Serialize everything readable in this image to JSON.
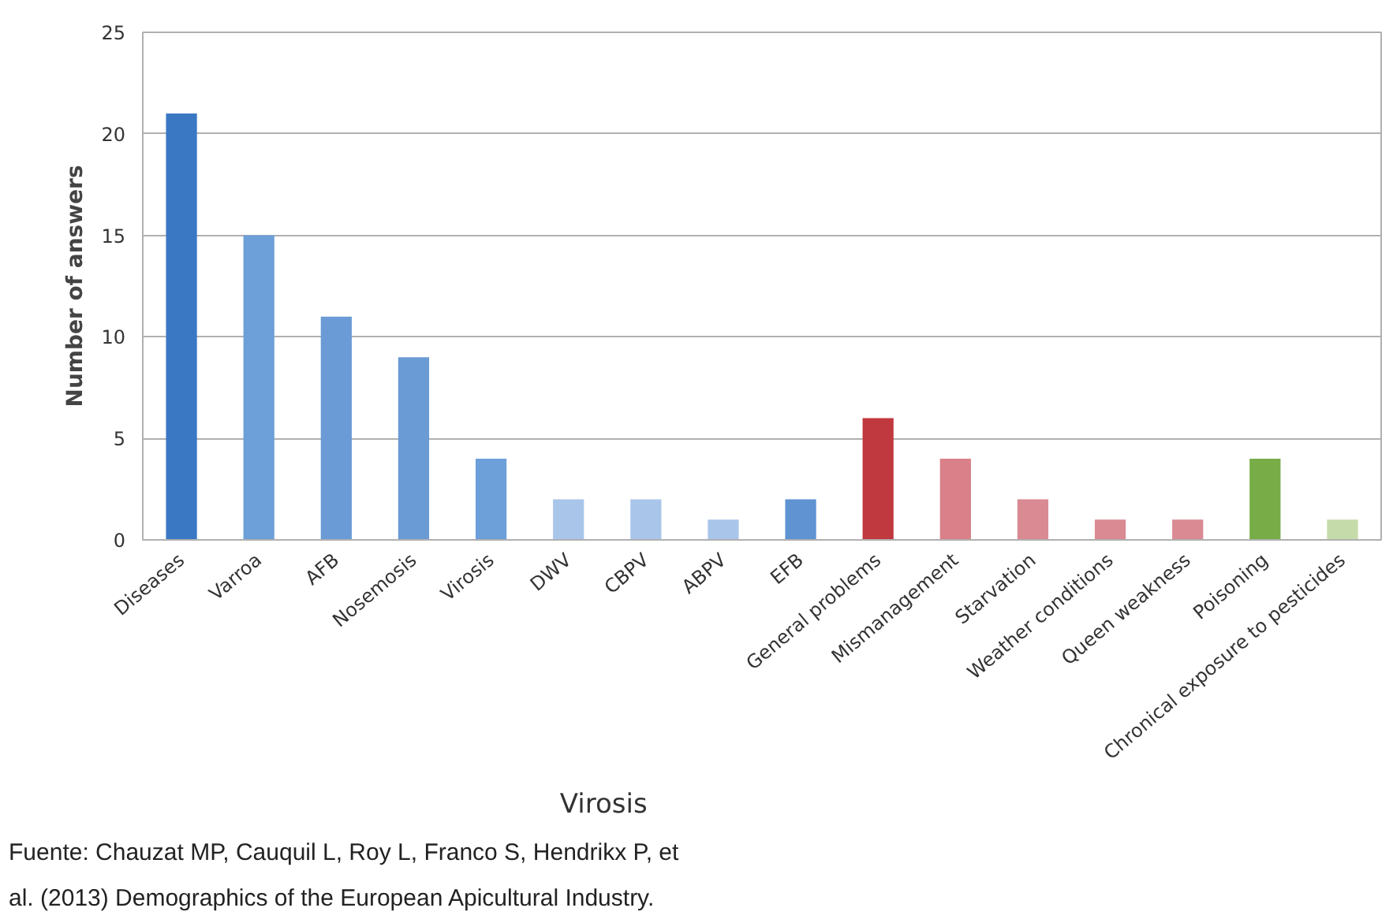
{
  "chart_data": {
    "type": "bar",
    "ylabel": "Number of answers",
    "categories": [
      "Diseases",
      "Varroa",
      "AFB",
      "Nosemosis",
      "Virosis",
      "DWV",
      "CBPV",
      "ABPV",
      "EFB",
      "General problems",
      "Mismanagement",
      "Starvation",
      "Weather conditions",
      "Queen weakness",
      "Poisoning",
      "Chronical exposure to pesticides"
    ],
    "values": [
      21,
      15,
      11,
      9,
      4,
      2,
      2,
      1,
      2,
      6,
      4,
      2,
      1,
      1,
      4,
      1
    ],
    "colors": [
      "#3a78c4",
      "#6d9fd9",
      "#6a9bd6",
      "#6b9bd5",
      "#6d9fd9",
      "#a9c6ea",
      "#a9c6ea",
      "#a9c6ea",
      "#5f93d2",
      "#c0393f",
      "#d98088",
      "#d98a92",
      "#d98a92",
      "#d98a92",
      "#77ac47",
      "#c5dcaa"
    ],
    "ylim": [
      0,
      25
    ],
    "yticks": [
      0,
      5,
      10,
      15,
      20,
      25
    ],
    "grid": "y",
    "annotations": [
      "Virosis",
      "Fuente: Chauzat MP, Cauquil L, Roy L, Franco S, Hendrikx P, et al. (2013) Demographics of the European Apicultural Industry."
    ]
  }
}
